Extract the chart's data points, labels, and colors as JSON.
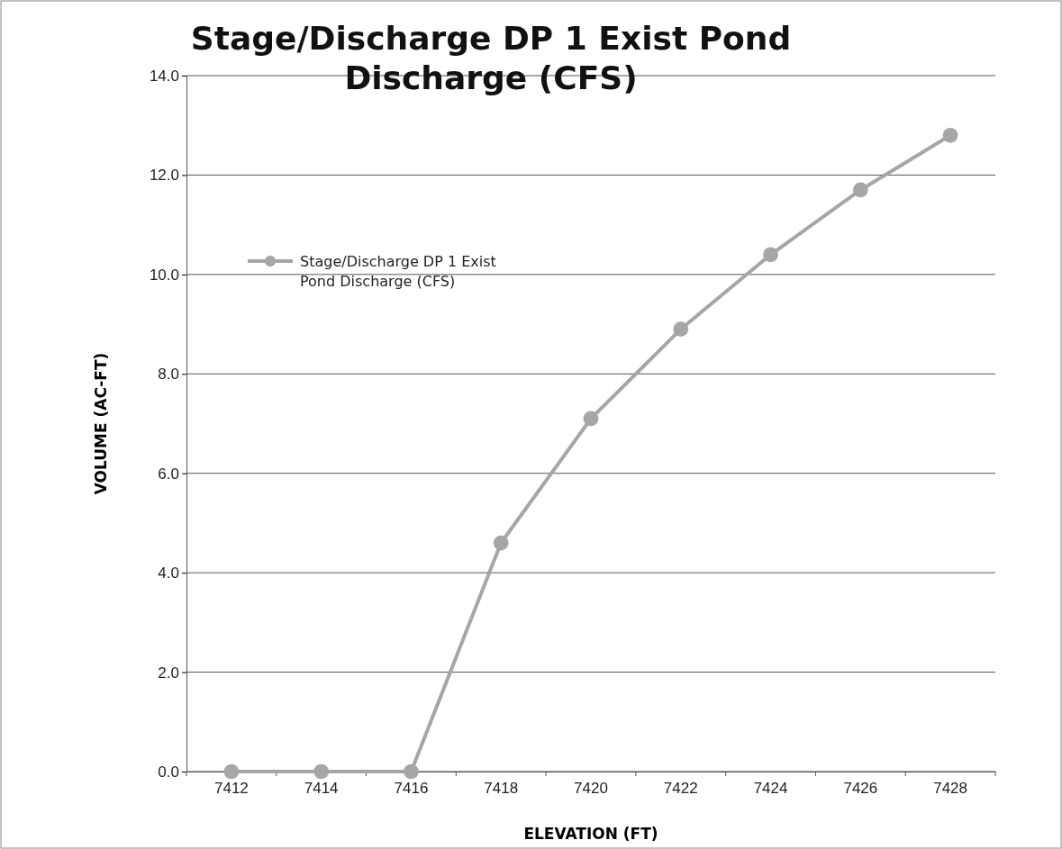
{
  "chart_data": {
    "type": "line",
    "title": "Stage/Discharge DP 1 Exist Pond Discharge (CFS)",
    "xlabel": "ELEVATION (FT)",
    "ylabel": "VOLUME (AC-FT)",
    "categories": [
      "7412",
      "7414",
      "7416",
      "7418",
      "7420",
      "7422",
      "7424",
      "7426",
      "7428"
    ],
    "series": [
      {
        "name": "Stage/Discharge DP 1 Exist Pond Discharge (CFS)",
        "color": "#a6a6a6",
        "values": [
          0,
          0,
          0,
          4.6,
          7.1,
          8.9,
          10.4,
          11.7,
          12.8
        ]
      }
    ],
    "ylim": [
      0,
      14
    ],
    "yticks": [
      {
        "value": 0,
        "label": "0.0"
      },
      {
        "value": 2,
        "label": "2.0"
      },
      {
        "value": 4,
        "label": "4.0"
      },
      {
        "value": 6,
        "label": "6.0"
      },
      {
        "value": 8,
        "label": "8.0"
      },
      {
        "value": 10,
        "label": "10.0"
      },
      {
        "value": 12,
        "label": "12.0"
      },
      {
        "value": 14,
        "label": "14.0"
      }
    ],
    "grid": "y",
    "legend": "top left",
    "marker": "circle",
    "line_style": "solid"
  }
}
